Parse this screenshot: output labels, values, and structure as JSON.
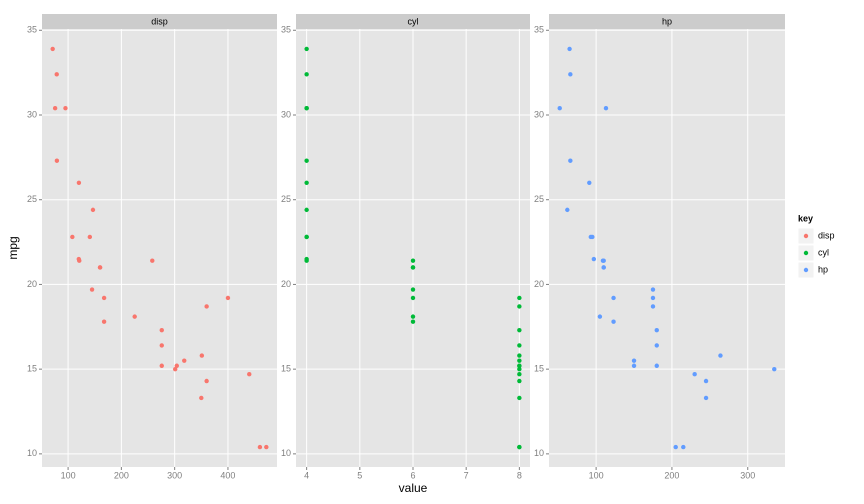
{
  "x_label": "value",
  "y_label": "mpg",
  "legend_title": "key",
  "chart_data": [
    {
      "type": "scatter",
      "grid": true,
      "x": [
        160,
        160,
        108,
        258,
        360,
        225,
        360,
        146.7,
        140.8,
        167.6,
        167.6,
        275.8,
        275.8,
        275.8,
        472,
        460,
        440,
        78.7,
        75.7,
        71.1,
        120.1,
        318,
        304,
        350,
        400,
        79,
        120.3,
        95.1,
        351,
        145,
        301,
        121
      ],
      "series": [
        {
          "name": "disp",
          "color": "#F8766D",
          "values": [
            21,
            21,
            22.8,
            21.4,
            18.7,
            18.1,
            14.3,
            24.4,
            22.8,
            19.2,
            17.8,
            16.4,
            17.3,
            15.2,
            10.4,
            10.4,
            14.7,
            32.4,
            30.4,
            33.9,
            21.5,
            15.5,
            15.2,
            13.3,
            19.2,
            27.3,
            26,
            30.4,
            15.8,
            19.7,
            15,
            21.4
          ]
        }
      ],
      "xlim": [
        51.055,
        492.045
      ],
      "xticks": [
        100,
        200,
        300,
        400
      ],
      "ylim": [
        9.225,
        35.075
      ],
      "yticks": [
        10,
        15,
        20,
        25,
        30,
        35
      ]
    },
    {
      "type": "scatter",
      "grid": true,
      "x": [
        6,
        6,
        4,
        6,
        8,
        6,
        8,
        4,
        4,
        6,
        6,
        8,
        8,
        8,
        8,
        8,
        8,
        4,
        4,
        4,
        4,
        8,
        8,
        8,
        8,
        4,
        4,
        4,
        8,
        6,
        8,
        4
      ],
      "series": [
        {
          "name": "cyl",
          "color": "#00BA38",
          "values": [
            21,
            21,
            22.8,
            21.4,
            18.7,
            18.1,
            14.3,
            24.4,
            22.8,
            19.2,
            17.8,
            16.4,
            17.3,
            15.2,
            10.4,
            10.4,
            14.7,
            32.4,
            30.4,
            33.9,
            21.5,
            15.5,
            15.2,
            13.3,
            19.2,
            27.3,
            26,
            30.4,
            15.8,
            19.7,
            15,
            21.4
          ]
        }
      ],
      "xlim": [
        3.8,
        8.2
      ],
      "xticks": [
        4,
        5,
        6,
        7,
        8
      ],
      "ylim": [
        9.225,
        35.075
      ],
      "yticks": [
        10,
        15,
        20,
        25,
        30,
        35
      ]
    },
    {
      "type": "scatter",
      "grid": true,
      "x": [
        110,
        110,
        93,
        110,
        175,
        105,
        245,
        62,
        95,
        123,
        123,
        180,
        180,
        180,
        205,
        215,
        230,
        66,
        52,
        65,
        97,
        150,
        150,
        245,
        175,
        66,
        91,
        113,
        264,
        175,
        335,
        109
      ],
      "series": [
        {
          "name": "hp",
          "color": "#619CFF",
          "values": [
            21,
            21,
            22.8,
            21.4,
            18.7,
            18.1,
            14.3,
            24.4,
            22.8,
            19.2,
            17.8,
            16.4,
            17.3,
            15.2,
            10.4,
            10.4,
            14.7,
            32.4,
            30.4,
            33.9,
            21.5,
            15.5,
            15.2,
            13.3,
            19.2,
            27.3,
            26,
            30.4,
            15.8,
            19.7,
            15,
            21.4
          ]
        }
      ],
      "xlim": [
        37.85,
        349.15
      ],
      "xticks": [
        100,
        200,
        300
      ],
      "ylim": [
        9.225,
        35.075
      ],
      "yticks": [
        10,
        15,
        20,
        25,
        30,
        35
      ]
    }
  ]
}
